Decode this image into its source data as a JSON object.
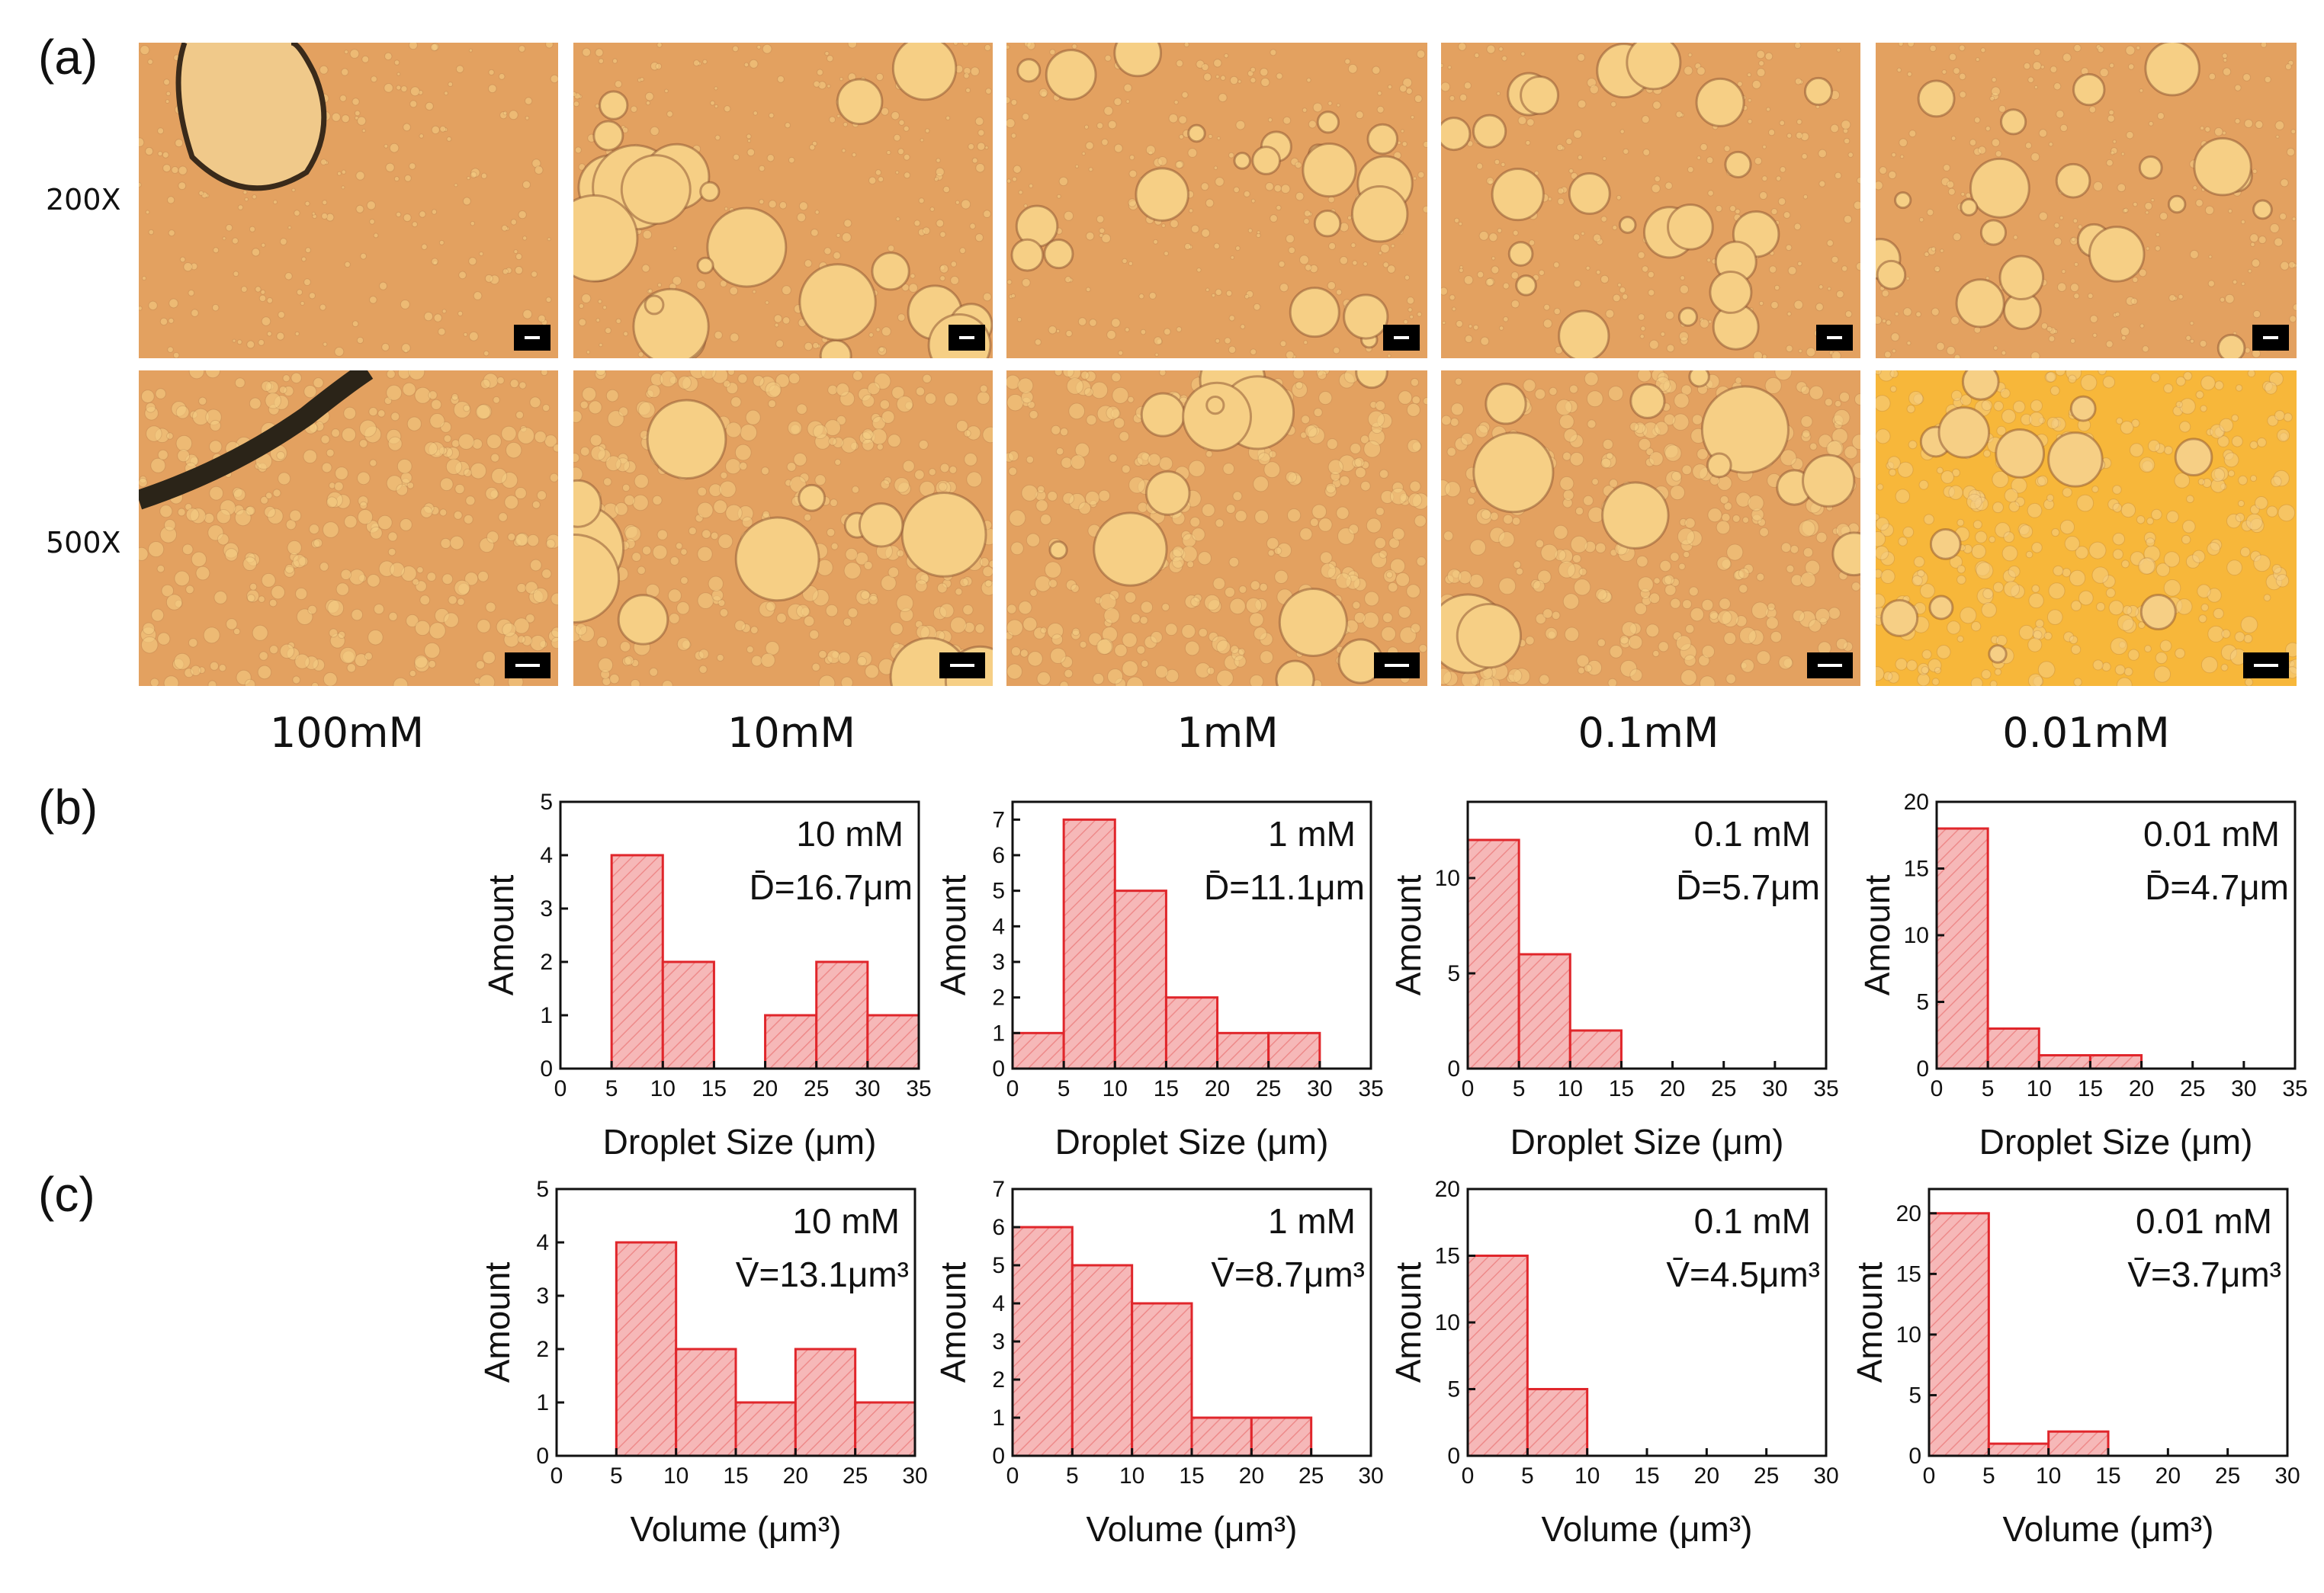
{
  "panels": {
    "a": "(a)",
    "b": "(b)",
    "c": "(c)"
  },
  "magnifications": [
    "200X",
    "500X"
  ],
  "concentrations": [
    "100mM",
    "10mM",
    "1mM",
    "0.1mM",
    "0.01mM"
  ],
  "micrograph_colors": {
    "base": "#e3a160",
    "droplet": "#f6cf85",
    "dark": "#8a5230",
    "bright": "#f7b73a"
  },
  "bar_fill": "#f6b8b8",
  "bar_stroke": "#e0262b",
  "chart_data": [
    {
      "type": "bar",
      "row": "b",
      "label": "10 mM",
      "stat": "D̄=16.7μm",
      "xlabel": "Droplet Size (μm)",
      "ylabel": "Amount",
      "xlim": [
        0,
        35
      ],
      "xticks": [
        0,
        5,
        10,
        15,
        20,
        25,
        30,
        35
      ],
      "ylim": [
        0,
        5
      ],
      "yticks": [
        0,
        1,
        2,
        3,
        4,
        5
      ],
      "bins": [
        [
          5,
          10,
          4
        ],
        [
          10,
          15,
          2
        ],
        [
          20,
          25,
          1
        ],
        [
          25,
          30,
          2
        ],
        [
          30,
          35,
          1
        ]
      ]
    },
    {
      "type": "bar",
      "row": "b",
      "label": "1 mM",
      "stat": "D̄=11.1μm",
      "xlabel": "Droplet Size (μm)",
      "ylabel": "Amount",
      "xlim": [
        0,
        35
      ],
      "xticks": [
        0,
        5,
        10,
        15,
        20,
        25,
        30,
        35
      ],
      "ylim": [
        0,
        7.5
      ],
      "yticks": [
        0,
        1,
        2,
        3,
        4,
        5,
        6,
        7
      ],
      "bins": [
        [
          0,
          5,
          1
        ],
        [
          5,
          10,
          7
        ],
        [
          10,
          15,
          5
        ],
        [
          15,
          20,
          2
        ],
        [
          20,
          25,
          1
        ],
        [
          25,
          30,
          1
        ]
      ]
    },
    {
      "type": "bar",
      "row": "b",
      "label": "0.1 mM",
      "stat": "D̄=5.7μm",
      "xlabel": "Droplet Size (μm)",
      "ylabel": "Amount",
      "xlim": [
        0,
        35
      ],
      "xticks": [
        0,
        5,
        10,
        15,
        20,
        25,
        30,
        35
      ],
      "ylim": [
        0,
        14
      ],
      "yticks": [
        0,
        5,
        10
      ],
      "bins": [
        [
          0,
          5,
          12
        ],
        [
          5,
          10,
          6
        ],
        [
          10,
          15,
          2
        ]
      ]
    },
    {
      "type": "bar",
      "row": "b",
      "label": "0.01 mM",
      "stat": "D̄=4.7μm",
      "xlabel": "Droplet Size (μm)",
      "ylabel": "Amount",
      "xlim": [
        0,
        35
      ],
      "xticks": [
        0,
        5,
        10,
        15,
        20,
        25,
        30,
        35
      ],
      "ylim": [
        0,
        20
      ],
      "yticks": [
        0,
        5,
        10,
        15,
        20
      ],
      "bins": [
        [
          0,
          5,
          18
        ],
        [
          5,
          10,
          3
        ],
        [
          10,
          15,
          1
        ],
        [
          15,
          20,
          1
        ]
      ]
    },
    {
      "type": "bar",
      "row": "c",
      "label": "10 mM",
      "stat": "V̄=13.1μm³",
      "xlabel": "Volume (μm³)",
      "ylabel": "Amount",
      "xlim": [
        0,
        30
      ],
      "xticks": [
        0,
        5,
        10,
        15,
        20,
        25,
        30
      ],
      "ylim": [
        0,
        5
      ],
      "yticks": [
        0,
        1,
        2,
        3,
        4,
        5
      ],
      "bins": [
        [
          5,
          10,
          4
        ],
        [
          10,
          15,
          2
        ],
        [
          15,
          20,
          1
        ],
        [
          20,
          25,
          2
        ],
        [
          25,
          30,
          1
        ]
      ]
    },
    {
      "type": "bar",
      "row": "c",
      "label": "1 mM",
      "stat": "V̄=8.7μm³",
      "xlabel": "Volume (μm³)",
      "ylabel": "Amount",
      "xlim": [
        0,
        30
      ],
      "xticks": [
        0,
        5,
        10,
        15,
        20,
        25,
        30
      ],
      "ylim": [
        0,
        7
      ],
      "yticks": [
        0,
        1,
        2,
        3,
        4,
        5,
        6,
        7
      ],
      "bins": [
        [
          0,
          5,
          6
        ],
        [
          5,
          10,
          5
        ],
        [
          10,
          15,
          4
        ],
        [
          15,
          20,
          1
        ],
        [
          20,
          25,
          1
        ]
      ]
    },
    {
      "type": "bar",
      "row": "c",
      "label": "0.1 mM",
      "stat": "V̄=4.5μm³",
      "xlabel": "Volume (μm³)",
      "ylabel": "Amount",
      "xlim": [
        0,
        30
      ],
      "xticks": [
        0,
        5,
        10,
        15,
        20,
        25,
        30
      ],
      "ylim": [
        0,
        20
      ],
      "yticks": [
        0,
        5,
        10,
        15,
        20
      ],
      "bins": [
        [
          0,
          5,
          15
        ],
        [
          5,
          10,
          5
        ]
      ]
    },
    {
      "type": "bar",
      "row": "c",
      "label": "0.01 mM",
      "stat": "V̄=3.7μm³",
      "xlabel": "Volume (μm³)",
      "ylabel": "Amount",
      "xlim": [
        0,
        30
      ],
      "xticks": [
        0,
        5,
        10,
        15,
        20,
        25,
        30
      ],
      "ylim": [
        0,
        22
      ],
      "yticks": [
        0,
        5,
        10,
        15,
        20
      ],
      "bins": [
        [
          0,
          5,
          20
        ],
        [
          5,
          10,
          1
        ],
        [
          10,
          15,
          2
        ]
      ]
    }
  ]
}
